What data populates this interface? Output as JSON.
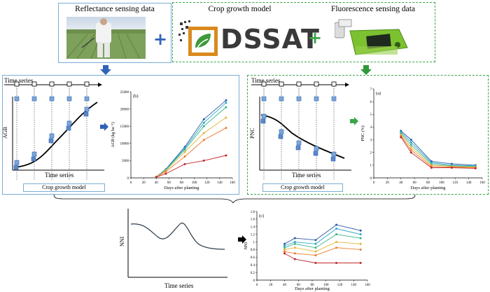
{
  "top": {
    "reflectance_title": "Reflectance sensing data",
    "model_title": "Crop growth model",
    "dssat_logo_text": "DSSAT",
    "fluorescence_title": "Fluorescence sensing data"
  },
  "left_panel": {
    "time_series_label": "Time series",
    "y_label": "AGB",
    "x_label": "Time series",
    "model_box": "Crop growth model",
    "chart_data": {
      "type": "scatter",
      "panel_label": "(b)",
      "xlabel": "Days after planting",
      "ylabel": "AGB (kg ha⁻¹)",
      "xlim": [
        0,
        160
      ],
      "ylim": [
        0,
        25000
      ],
      "xticks": [
        0,
        20,
        40,
        60,
        80,
        100,
        120,
        140,
        160
      ],
      "yticks": [
        0,
        5000,
        10000,
        15000,
        20000,
        25000
      ],
      "x": [
        40,
        55,
        85,
        115,
        150
      ],
      "series": [
        {
          "color": "#2e5aa8",
          "values": [
            300,
            2500,
            9000,
            17000,
            22500
          ]
        },
        {
          "color": "#2aa7c9",
          "values": [
            300,
            2400,
            8600,
            16000,
            21800
          ]
        },
        {
          "color": "#35b48a",
          "values": [
            300,
            2300,
            8200,
            15000,
            20500
          ]
        },
        {
          "color": "#e2b43a",
          "values": [
            300,
            2100,
            7500,
            13000,
            17500
          ]
        },
        {
          "color": "#ec7b2c",
          "values": [
            250,
            1800,
            6200,
            11000,
            14500
          ]
        },
        {
          "color": "#c0282a",
          "values": [
            200,
            1200,
            4000,
            5000,
            6500
          ]
        }
      ]
    }
  },
  "right_panel": {
    "time_series_label": "Time series",
    "y_label": "PNC",
    "x_label": "Time series",
    "model_box": "Crop growth model",
    "chart_data": {
      "type": "scatter",
      "panel_label": "(a)",
      "xlabel": "Days after planting",
      "ylabel": "PNC (%)",
      "xlim": [
        0,
        160
      ],
      "ylim": [
        0,
        7
      ],
      "xticks": [
        0,
        20,
        40,
        60,
        80,
        100,
        120,
        140,
        160
      ],
      "yticks": [
        0,
        1,
        2,
        3,
        4,
        5,
        6,
        7
      ],
      "x": [
        40,
        55,
        85,
        115,
        150
      ],
      "series": [
        {
          "color": "#2e5aa8",
          "values": [
            3.7,
            3.0,
            1.3,
            1.1,
            1.0
          ]
        },
        {
          "color": "#2aa7c9",
          "values": [
            3.6,
            2.8,
            1.2,
            1.0,
            0.95
          ]
        },
        {
          "color": "#35b48a",
          "values": [
            3.5,
            2.6,
            1.1,
            0.95,
            0.9
          ]
        },
        {
          "color": "#e2b43a",
          "values": [
            3.4,
            2.4,
            1.0,
            0.9,
            0.85
          ]
        },
        {
          "color": "#ec7b2c",
          "values": [
            3.3,
            2.2,
            0.9,
            0.85,
            0.8
          ]
        },
        {
          "color": "#c0282a",
          "values": [
            3.2,
            2.0,
            0.8,
            0.8,
            0.75
          ]
        }
      ]
    }
  },
  "bottom_left": {
    "y_label": "NNI",
    "x_label": "Time series"
  },
  "bottom_right": {
    "chart_data": {
      "type": "scatter",
      "panel_label": "(c)",
      "xlabel": "Days after planting",
      "ylabel": "NNI",
      "xlim": [
        0,
        160
      ],
      "ylim": [
        0,
        1.8
      ],
      "xticks": [
        0,
        20,
        40,
        60,
        80,
        100,
        120,
        140,
        160
      ],
      "yticks": [
        0,
        0.2,
        0.4,
        0.6,
        0.8,
        1.0,
        1.2,
        1.4,
        1.6,
        1.8
      ],
      "x": [
        40,
        55,
        85,
        115,
        150
      ],
      "series": [
        {
          "color": "#2e5aa8",
          "values": [
            0.95,
            1.1,
            1.05,
            1.45,
            1.3
          ]
        },
        {
          "color": "#2aa7c9",
          "values": [
            0.9,
            1.0,
            0.95,
            1.35,
            1.2
          ]
        },
        {
          "color": "#35b48a",
          "values": [
            0.85,
            0.95,
            0.85,
            1.2,
            1.1
          ]
        },
        {
          "color": "#e2b43a",
          "values": [
            0.8,
            0.85,
            0.75,
            1.0,
            0.95
          ]
        },
        {
          "color": "#ec7b2c",
          "values": [
            0.75,
            0.7,
            0.65,
            0.85,
            0.8
          ]
        },
        {
          "color": "#c0282a",
          "values": [
            0.7,
            0.55,
            0.45,
            0.45,
            0.45
          ]
        }
      ]
    }
  }
}
